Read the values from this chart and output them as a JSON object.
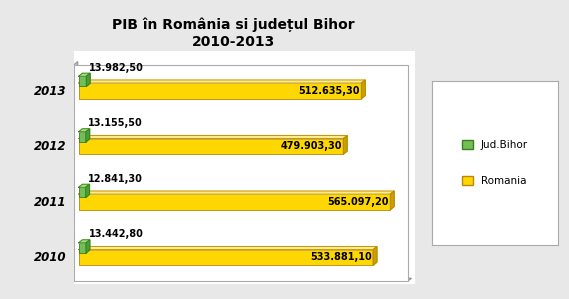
{
  "title": "PIB în România si județul Bihor\n2010-2013",
  "years": [
    "2010",
    "2011",
    "2012",
    "2013"
  ],
  "romania_values": [
    533881.1,
    565097.2,
    479903.3,
    512635.3
  ],
  "bihor_values": [
    13442.8,
    12841.3,
    13155.5,
    13982.5
  ],
  "romania_labels": [
    "533.881,10",
    "565.097,20",
    "479.903,30",
    "512.635,30"
  ],
  "bihor_labels": [
    "13.442,80",
    "12.841,30",
    "13.155,50",
    "13.982,50"
  ],
  "romania_color": "#FFD700",
  "romania_top_color": "#FFEE88",
  "romania_side_color": "#C8A000",
  "romania_edge_color": "#B8860B",
  "bihor_color": "#72C055",
  "bihor_top_color": "#A0E080",
  "bihor_side_color": "#4a9e32",
  "bihor_edge_color": "#3a7d22",
  "background_color": "#e8e8e8",
  "plot_bg_color": "#ffffff",
  "panel_bg_color": "#d0d0d0",
  "title_fontsize": 10,
  "label_fontsize": 7,
  "tick_fontsize": 8.5,
  "legend_labels": [
    "Jud.Bihor",
    "Romania"
  ],
  "max_val": 565097.2
}
